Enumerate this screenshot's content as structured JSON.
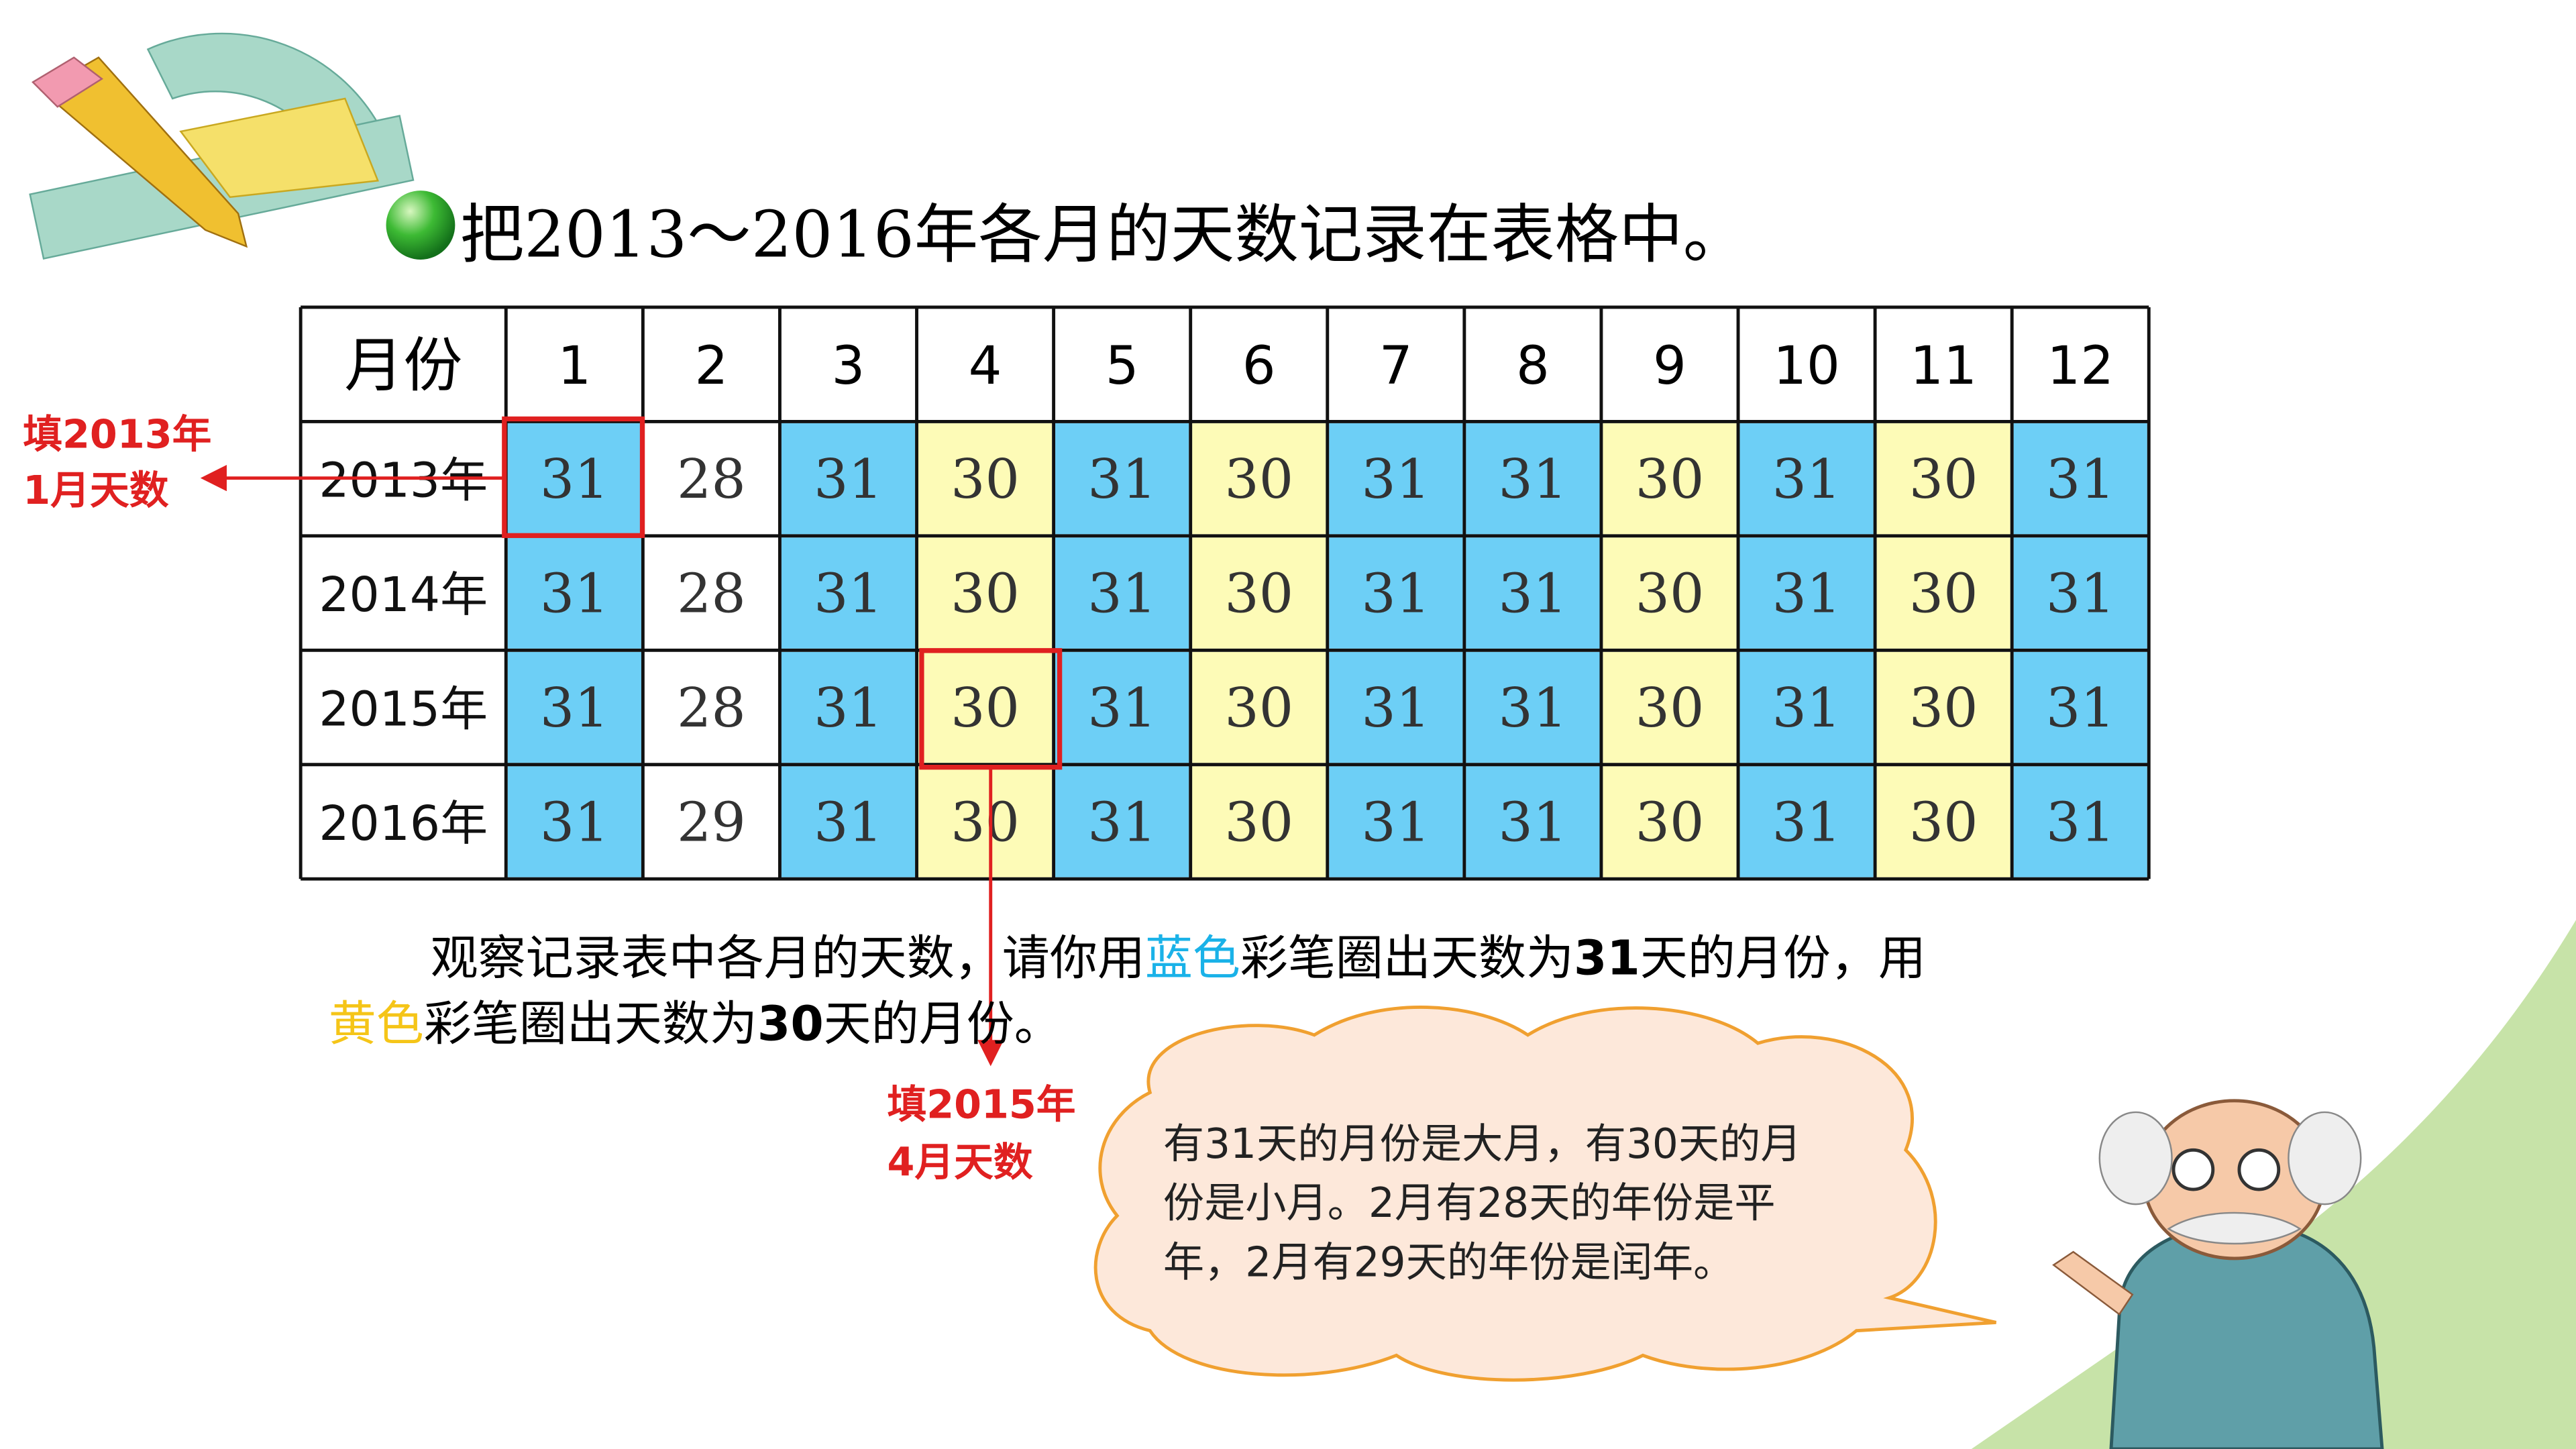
{
  "title": "把2013～2016年各月的天数记录在表格中。",
  "table": {
    "header": [
      "月份",
      "1",
      "2",
      "3",
      "4",
      "5",
      "6",
      "7",
      "8",
      "9",
      "10",
      "11",
      "12"
    ],
    "column_colors": [
      "#6dcff6",
      "#ffffff",
      "#6dcff6",
      "#fdfbb7",
      "#6dcff6",
      "#fdfbb7",
      "#6dcff6",
      "#6dcff6",
      "#fdfbb7",
      "#6dcff6",
      "#fdfbb7",
      "#6dcff6"
    ],
    "rows": [
      [
        "2013年",
        31,
        28,
        31,
        30,
        31,
        30,
        31,
        31,
        30,
        31,
        30,
        31
      ],
      [
        "2014年",
        31,
        28,
        31,
        30,
        31,
        30,
        31,
        31,
        30,
        31,
        30,
        31
      ],
      [
        "2015年",
        31,
        28,
        31,
        30,
        31,
        30,
        31,
        31,
        30,
        31,
        30,
        31
      ],
      [
        "2016年",
        31,
        29,
        31,
        30,
        31,
        30,
        31,
        31,
        30,
        31,
        30,
        31
      ]
    ]
  },
  "annotations": [
    {
      "lines": [
        "填2013年",
        "1月天数"
      ]
    },
    {
      "lines": [
        "填2015年",
        "4月天数"
      ]
    }
  ],
  "instruction": {
    "lines": [
      [
        {
          "text": "观察记录表中各月的天数，请你用"
        },
        {
          "text": "蓝色",
          "color": "#1ab2e8"
        },
        {
          "text": "彩笔圈出天数为"
        },
        {
          "text": "31",
          "bold": true
        },
        {
          "text": "天的月份，用"
        }
      ],
      [
        {
          "text": "黄色",
          "color": "#f5c518"
        },
        {
          "text": "彩笔圈出天数为"
        },
        {
          "text": "30",
          "bold": true
        },
        {
          "text": "天的月份。"
        }
      ]
    ]
  },
  "bubble": {
    "lines": [
      "有31天的月份是大月，有30天的月",
      "份是小月。2月有28天的年份是平",
      "年，2月有29天的年份是闰年。"
    ]
  }
}
